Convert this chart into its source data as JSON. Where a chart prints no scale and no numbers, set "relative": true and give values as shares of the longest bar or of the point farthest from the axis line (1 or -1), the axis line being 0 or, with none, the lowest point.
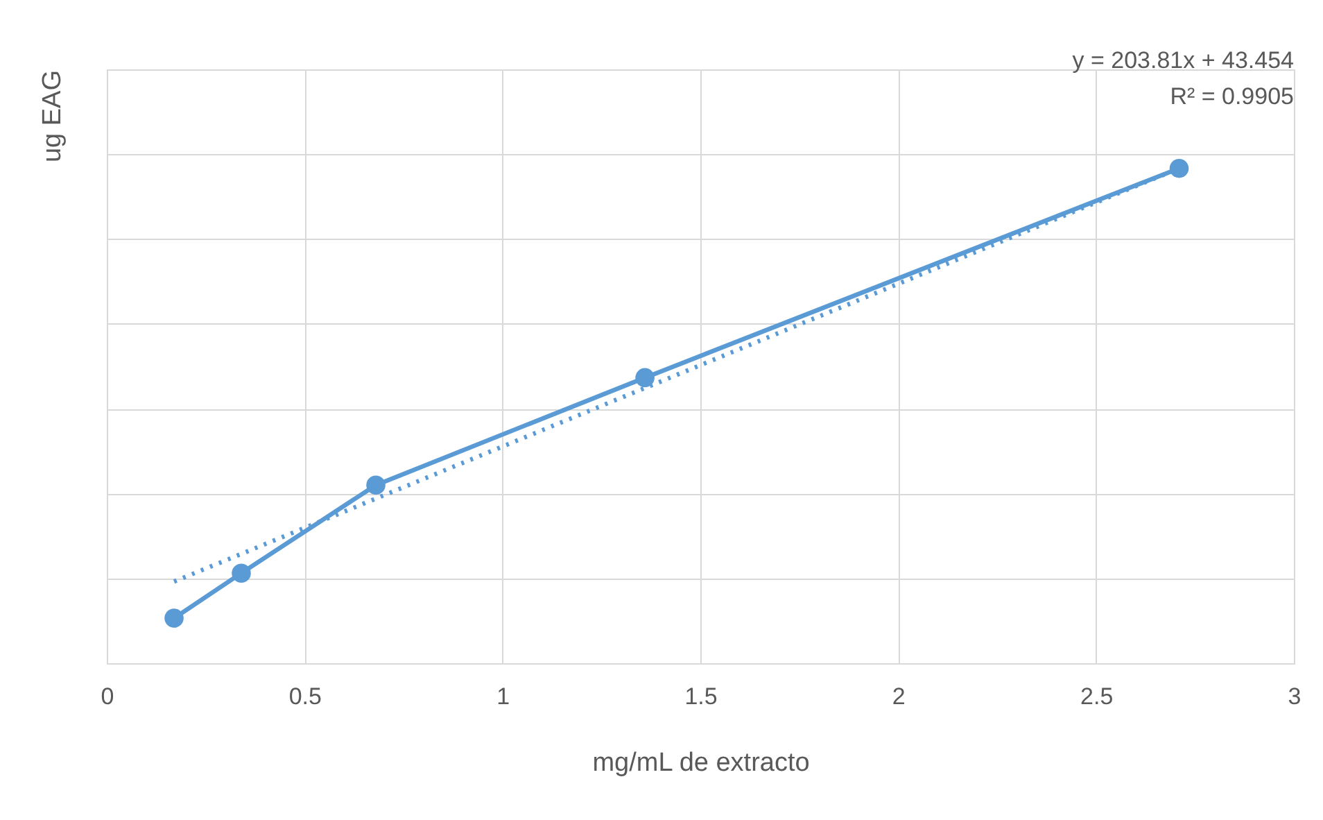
{
  "chart_data": {
    "type": "line",
    "relative": true,
    "xlabel": "mg/mL de extracto",
    "ylabel": "ug EAG",
    "xlim": [
      0,
      3
    ],
    "xticks": [
      0,
      0.5,
      1,
      1.5,
      2,
      2.5,
      3
    ],
    "grid": true,
    "annotations": [
      "y = 203.81x + 43.454",
      "R² = 0.9905"
    ],
    "series": [
      {
        "color": "#5b9bd5",
        "marker": "circle",
        "line_style": "solid",
        "x": [
          0.17,
          0.34,
          0.68,
          1.36,
          2.71
        ],
        "values": [
          0.091,
          0.182,
          0.36,
          0.577,
          1.0
        ]
      },
      {
        "type": "line",
        "color": "#5b9bd5",
        "marker": "none",
        "line_style": "dotted",
        "x": [
          0.17,
          2.71
        ],
        "values": [
          0.165,
          1.0
        ]
      }
    ]
  }
}
